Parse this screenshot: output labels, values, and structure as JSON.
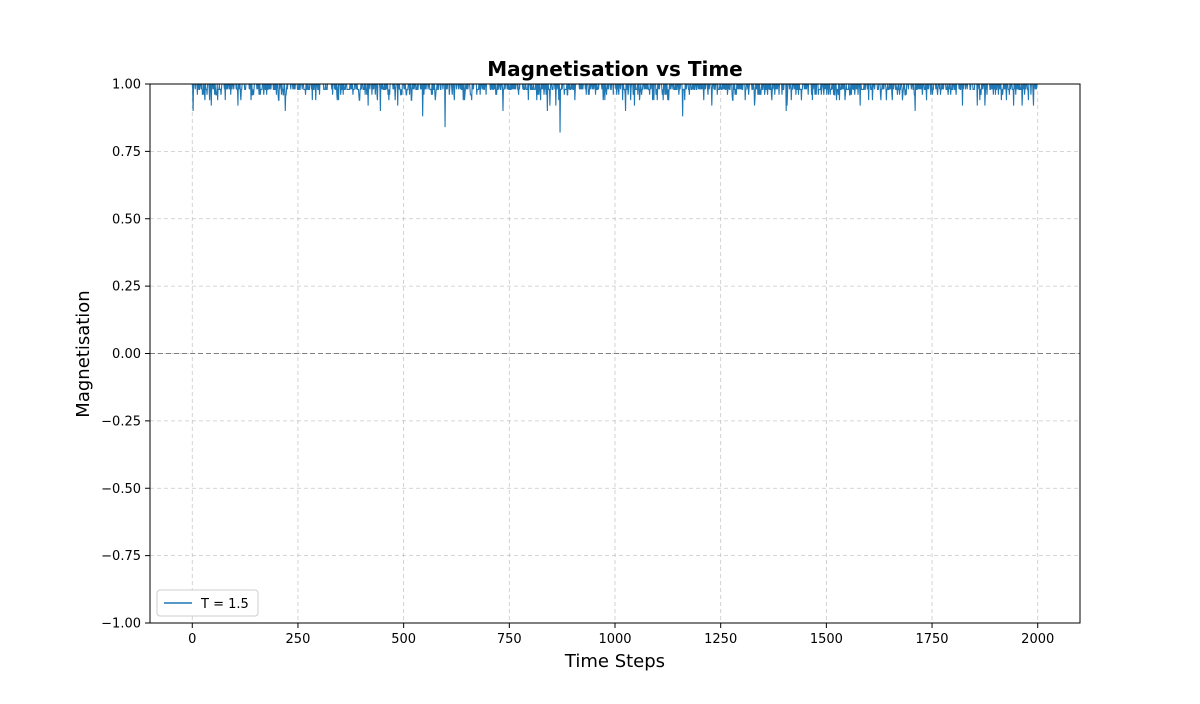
{
  "chart_data": {
    "type": "line",
    "title": "Magnetisation vs Time",
    "xlabel": "Time Steps",
    "ylabel": "Magnetisation",
    "xlim": [
      -100,
      2100
    ],
    "ylim": [
      -1.0,
      1.0
    ],
    "x_ticks": [
      "0",
      "250",
      "500",
      "750",
      "1000",
      "1250",
      "1500",
      "1750",
      "2000"
    ],
    "y_ticks": [
      "1.00",
      "0.75",
      "0.50",
      "0.25",
      "0.00",
      "−0.25",
      "−0.50",
      "−0.75",
      "−1.00"
    ],
    "grid": true,
    "legend_position": "lower-left",
    "reference_line": {
      "y": 0.0,
      "color": "#808080",
      "style": "dashed"
    },
    "series": [
      {
        "name": "T = 1.5",
        "color": "#1f77b4",
        "x_start": 0,
        "x_end": 2000,
        "baseline": 1.0,
        "notable_dips": [
          {
            "x": 2,
            "y": 0.9
          },
          {
            "x": 45,
            "y": 0.92
          },
          {
            "x": 220,
            "y": 0.9
          },
          {
            "x": 445,
            "y": 0.9
          },
          {
            "x": 545,
            "y": 0.88
          },
          {
            "x": 598,
            "y": 0.84
          },
          {
            "x": 735,
            "y": 0.9
          },
          {
            "x": 840,
            "y": 0.9
          },
          {
            "x": 870,
            "y": 0.82
          },
          {
            "x": 1025,
            "y": 0.9
          },
          {
            "x": 1160,
            "y": 0.88
          },
          {
            "x": 1405,
            "y": 0.9
          },
          {
            "x": 1710,
            "y": 0.9
          },
          {
            "x": 1875,
            "y": 0.92
          },
          {
            "x": 1990,
            "y": 0.92
          }
        ]
      }
    ]
  }
}
